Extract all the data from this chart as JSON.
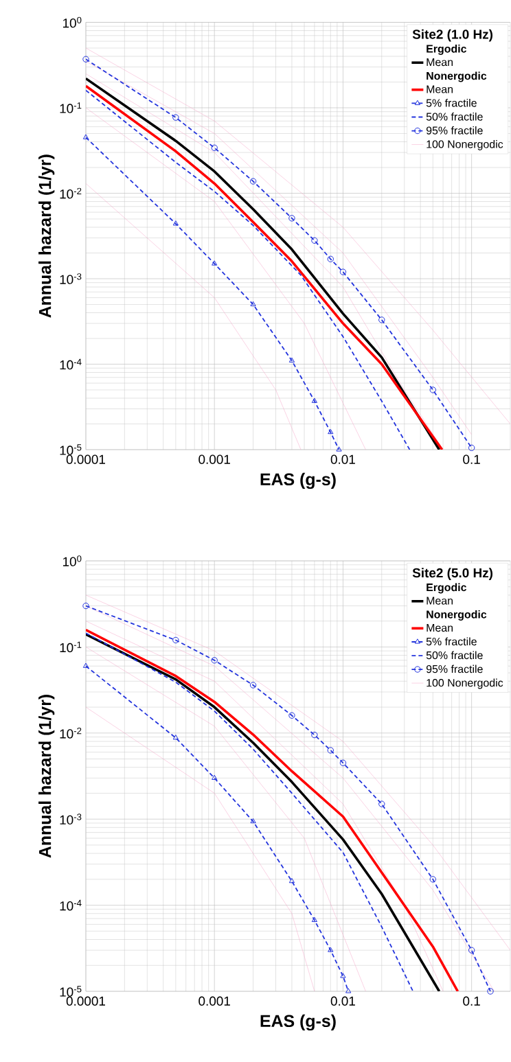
{
  "chart_data": [
    {
      "type": "line",
      "legend_title": "Site2 (1.0 Hz)",
      "xlabel": "EAS (g-s)",
      "ylabel": "Annual hazard (1/yr)",
      "annotations": [
        "Ergodic",
        "Nonergodic"
      ],
      "log": "xy",
      "grid": true,
      "legend": "top right",
      "xlim": [
        0.0001,
        0.2
      ],
      "ylim": [
        1e-05,
        1
      ],
      "xticks": [
        0.0001,
        0.001,
        0.01,
        0.1
      ],
      "yticks": [
        {
          "value": 1e-05,
          "label": "10$^{-5}$"
        },
        {
          "value": 0.0001,
          "label": "10$^{-4}$"
        },
        {
          "value": 0.001,
          "label": "10$^{-3}$"
        },
        {
          "value": 0.01,
          "label": "10$^{-2}$"
        },
        {
          "value": 0.1,
          "label": "10$^{-1}$"
        },
        {
          "value": 1,
          "label": "10$^{0}$"
        }
      ],
      "series": [
        {
          "name": "Mean",
          "color": "#000000",
          "marker": "none",
          "line_style": "solid",
          "x": [
            0.0001,
            0.0005,
            0.001,
            0.002,
            0.004,
            0.01,
            0.02,
            0.056
          ],
          "values": [
            0.22,
            0.041,
            0.018,
            0.0065,
            0.0022,
            0.00039,
            0.00012,
            1e-05
          ]
        },
        {
          "name": "Mean",
          "color": "#ff0000",
          "marker": "none",
          "line_style": "solid",
          "x": [
            0.0001,
            0.0005,
            0.001,
            0.002,
            0.004,
            0.01,
            0.02,
            0.059
          ],
          "values": [
            0.18,
            0.031,
            0.013,
            0.0046,
            0.0016,
            0.0003,
            0.0001,
            1e-05
          ]
        },
        {
          "name": "5% fractile",
          "color": "#2233dd",
          "marker": "triangle",
          "line_style": "dashed",
          "x": [
            0.0001,
            0.0005,
            0.001,
            0.002,
            0.004,
            0.006,
            0.008,
            0.0093
          ],
          "values": [
            0.045,
            0.0044,
            0.0015,
            0.0005,
            0.00011,
            3.7e-05,
            1.6e-05,
            1e-05
          ]
        },
        {
          "name": "50% fractile",
          "color": "#2233dd",
          "marker": "none",
          "line_style": "dashed",
          "x": [
            0.0001,
            0.0005,
            0.001,
            0.002,
            0.0047,
            0.01,
            0.02,
            0.033
          ],
          "values": [
            0.16,
            0.023,
            0.0105,
            0.0042,
            0.0011,
            0.00021,
            3.7e-05,
            1e-05
          ]
        },
        {
          "name": "95% fractile",
          "color": "#2233dd",
          "marker": "circle",
          "line_style": "dashed",
          "x": [
            0.0001,
            0.0005,
            0.001,
            0.002,
            0.004,
            0.006,
            0.008,
            0.01,
            0.02,
            0.05,
            0.1
          ],
          "values": [
            0.37,
            0.077,
            0.034,
            0.0138,
            0.0051,
            0.0028,
            0.0017,
            0.0012,
            0.00033,
            5e-05,
            1.05e-05
          ]
        },
        {
          "name": "100 Nonergodic",
          "color": "#f4a6c8",
          "marker": "none",
          "line_style": "solid",
          "x": [
            0.0001,
            0.001,
            0.01,
            0.05,
            0.2
          ],
          "values": [
            0.5,
            0.07,
            0.004,
            0.00025,
            2e-05
          ]
        },
        {
          "color": "#f4a6c8",
          "marker": "none",
          "line_style": "solid",
          "x": [
            0.0001,
            0.001,
            0.01,
            0.03,
            0.06
          ],
          "values": [
            0.25,
            0.03,
            0.0008,
            5e-05,
            1e-05
          ]
        },
        {
          "color": "#f4a6c8",
          "marker": "none",
          "line_style": "solid",
          "x": [
            0.0001,
            0.001,
            0.005,
            0.015
          ],
          "values": [
            0.1,
            0.008,
            0.0003,
            1e-05
          ]
        },
        {
          "color": "#f4a6c8",
          "marker": "none",
          "line_style": "solid",
          "x": [
            0.0001,
            0.001,
            0.003,
            0.0047
          ],
          "values": [
            0.013,
            0.0006,
            5e-05,
            1e-05
          ]
        },
        {
          "color": "#f4a6c8",
          "marker": "none",
          "line_style": "solid",
          "x": [
            0.0001,
            0.001,
            0.01,
            0.05,
            0.1
          ],
          "values": [
            0.35,
            0.05,
            0.002,
            7e-05,
            1.5e-05
          ]
        }
      ]
    },
    {
      "type": "line",
      "legend_title": "Site2 (5.0 Hz)",
      "xlabel": "EAS (g-s)",
      "ylabel": "Annual hazard (1/yr)",
      "annotations": [
        "Ergodic",
        "Nonergodic"
      ],
      "log": "xy",
      "grid": true,
      "legend": "top right",
      "xlim": [
        0.0001,
        0.2
      ],
      "ylim": [
        1e-05,
        1
      ],
      "xticks": [
        0.0001,
        0.001,
        0.01,
        0.1
      ],
      "yticks": [
        {
          "value": 1e-05,
          "label": "10$^{-5}$"
        },
        {
          "value": 0.0001,
          "label": "10$^{-4}$"
        },
        {
          "value": 0.001,
          "label": "10$^{-3}$"
        },
        {
          "value": 0.01,
          "label": "10$^{-2}$"
        },
        {
          "value": 0.1,
          "label": "10$^{-1}$"
        },
        {
          "value": 1,
          "label": "10$^{0}$"
        }
      ],
      "series": [
        {
          "name": "Mean",
          "color": "#000000",
          "marker": "none",
          "line_style": "solid",
          "x": [
            0.0001,
            0.0005,
            0.001,
            0.002,
            0.004,
            0.01,
            0.02,
            0.056
          ],
          "values": [
            0.14,
            0.042,
            0.02,
            0.0077,
            0.0027,
            0.00058,
            0.000135,
            1e-05
          ]
        },
        {
          "name": "Mean",
          "color": "#ff0000",
          "marker": "none",
          "line_style": "solid",
          "x": [
            0.0001,
            0.0005,
            0.001,
            0.002,
            0.004,
            0.01,
            0.02,
            0.05,
            0.078
          ],
          "values": [
            0.158,
            0.046,
            0.023,
            0.0096,
            0.0036,
            0.00107,
            0.00024,
            3.3e-05,
            1e-05
          ]
        },
        {
          "name": "5% fractile",
          "color": "#2233dd",
          "marker": "triangle",
          "line_style": "dashed",
          "x": [
            0.0001,
            0.0005,
            0.001,
            0.002,
            0.004,
            0.006,
            0.008,
            0.01,
            0.011
          ],
          "values": [
            0.06,
            0.0088,
            0.003,
            0.00094,
            0.00019,
            6.7e-05,
            3e-05,
            1.5e-05,
            1e-05
          ]
        },
        {
          "name": "50% fractile",
          "color": "#2233dd",
          "marker": "none",
          "line_style": "dashed",
          "x": [
            0.0001,
            0.0005,
            0.001,
            0.002,
            0.004,
            0.01,
            0.02,
            0.035
          ],
          "values": [
            0.145,
            0.039,
            0.018,
            0.0065,
            0.002,
            0.00041,
            5.6e-05,
            1e-05
          ]
        },
        {
          "name": "95% fractile",
          "color": "#2233dd",
          "marker": "circle",
          "line_style": "dashed",
          "x": [
            0.0001,
            0.0005,
            0.001,
            0.002,
            0.004,
            0.006,
            0.008,
            0.01,
            0.02,
            0.05,
            0.1,
            0.14
          ],
          "values": [
            0.3,
            0.12,
            0.07,
            0.036,
            0.016,
            0.0095,
            0.0063,
            0.0045,
            0.0015,
            0.0002,
            3e-05,
            1e-05
          ]
        },
        {
          "name": "100 Nonergodic",
          "color": "#f4a6c8",
          "marker": "none",
          "line_style": "solid",
          "x": [
            0.0001,
            0.001,
            0.01,
            0.05,
            0.2
          ],
          "values": [
            0.4,
            0.09,
            0.008,
            0.0005,
            3e-05
          ]
        },
        {
          "color": "#f4a6c8",
          "marker": "none",
          "line_style": "solid",
          "x": [
            0.0001,
            0.001,
            0.01,
            0.03,
            0.06
          ],
          "values": [
            0.2,
            0.04,
            0.0015,
            0.0001,
            1e-05
          ]
        },
        {
          "color": "#f4a6c8",
          "marker": "none",
          "line_style": "solid",
          "x": [
            0.0001,
            0.001,
            0.005,
            0.015
          ],
          "values": [
            0.1,
            0.012,
            0.0006,
            1e-05
          ]
        },
        {
          "color": "#f4a6c8",
          "marker": "none",
          "line_style": "solid",
          "x": [
            0.0001,
            0.001,
            0.004,
            0.006
          ],
          "values": [
            0.02,
            0.002,
            8e-05,
            1e-05
          ]
        },
        {
          "color": "#f4a6c8",
          "marker": "none",
          "line_style": "solid",
          "x": [
            0.0001,
            0.001,
            0.01,
            0.05,
            0.15
          ],
          "values": [
            0.3,
            0.06,
            0.003,
            0.00015,
            1e-05
          ]
        }
      ]
    }
  ]
}
